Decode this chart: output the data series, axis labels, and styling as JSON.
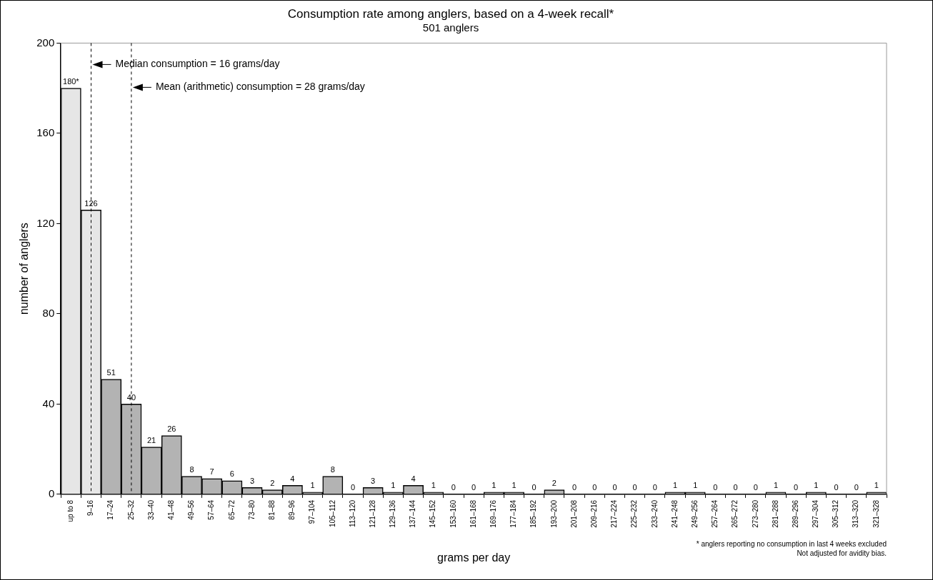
{
  "chart_data": {
    "type": "bar",
    "title": "Consumption rate among anglers, based on a 4-week recall*",
    "subtitle": "501 anglers",
    "xlabel": "grams per day",
    "ylabel": "number of anglers",
    "categories": [
      "up to 8",
      "9–16",
      "17–24",
      "25–32",
      "33–40",
      "41–48",
      "49–56",
      "57–64",
      "65–72",
      "73–80",
      "81–88",
      "89–96",
      "97–104",
      "105–112",
      "113–120",
      "121–128",
      "129–136",
      "137–144",
      "145–152",
      "153–160",
      "161–168",
      "169–176",
      "177–184",
      "185–192",
      "193–200",
      "201–208",
      "209–216",
      "217–224",
      "225–232",
      "233–240",
      "241–248",
      "249–256",
      "257–264",
      "265–272",
      "273–280",
      "281–288",
      "289–296",
      "297–304",
      "305–312",
      "313–320",
      "321–328"
    ],
    "values": [
      180,
      126,
      51,
      40,
      21,
      26,
      8,
      7,
      6,
      3,
      2,
      4,
      1,
      8,
      0,
      3,
      1,
      4,
      1,
      0,
      0,
      1,
      1,
      0,
      2,
      0,
      0,
      0,
      0,
      0,
      1,
      1,
      0,
      0,
      0,
      1,
      0,
      1,
      0,
      0,
      1
    ],
    "value_labels": [
      "180*",
      "126",
      "51",
      "40",
      "21",
      "26",
      "8",
      "7",
      "6",
      "3",
      "2",
      "4",
      "1",
      "8",
      "0",
      "3",
      "1",
      "4",
      "1",
      "0",
      "0",
      "1",
      "1",
      "0",
      "2",
      "0",
      "0",
      "0",
      "0",
      "0",
      "1",
      "1",
      "0",
      "0",
      "0",
      "1",
      "0",
      "1",
      "0",
      "0",
      "1"
    ],
    "colors": [
      "#e6e6e6",
      "#e6e6e6",
      "#b3b3b3",
      "#b3b3b3",
      "#b3b3b3",
      "#b3b3b3",
      "#b3b3b3",
      "#b3b3b3",
      "#b3b3b3",
      "#b3b3b3",
      "#b3b3b3",
      "#b3b3b3",
      "#b3b3b3",
      "#b3b3b3",
      "#b3b3b3",
      "#b3b3b3",
      "#b3b3b3",
      "#b3b3b3",
      "#b3b3b3",
      "#b3b3b3",
      "#b3b3b3",
      "#b3b3b3",
      "#b3b3b3",
      "#b3b3b3",
      "#b3b3b3",
      "#b3b3b3",
      "#b3b3b3",
      "#b3b3b3",
      "#b3b3b3",
      "#b3b3b3",
      "#b3b3b3",
      "#b3b3b3",
      "#b3b3b3",
      "#b3b3b3",
      "#b3b3b3",
      "#b3b3b3",
      "#b3b3b3",
      "#b3b3b3",
      "#b3b3b3",
      "#b3b3b3",
      "#b3b3b3"
    ],
    "ylim": [
      0,
      200
    ],
    "yticks": [
      0,
      40,
      80,
      120,
      160,
      200
    ],
    "grid": false,
    "legend": false,
    "ref_lines": [
      {
        "axis": "x",
        "value": "9–16",
        "label": "Median consumption = 16 grams/day",
        "line_style": "dashed"
      },
      {
        "axis": "x",
        "value": "25–32",
        "label": "Mean (arithmetic) consumption = 28 grams/day",
        "line_style": "dashed"
      }
    ],
    "annotations": [
      "* anglers reporting no consumption in last 4 weeks excluded",
      "Not adjusted for avidity bias."
    ]
  }
}
